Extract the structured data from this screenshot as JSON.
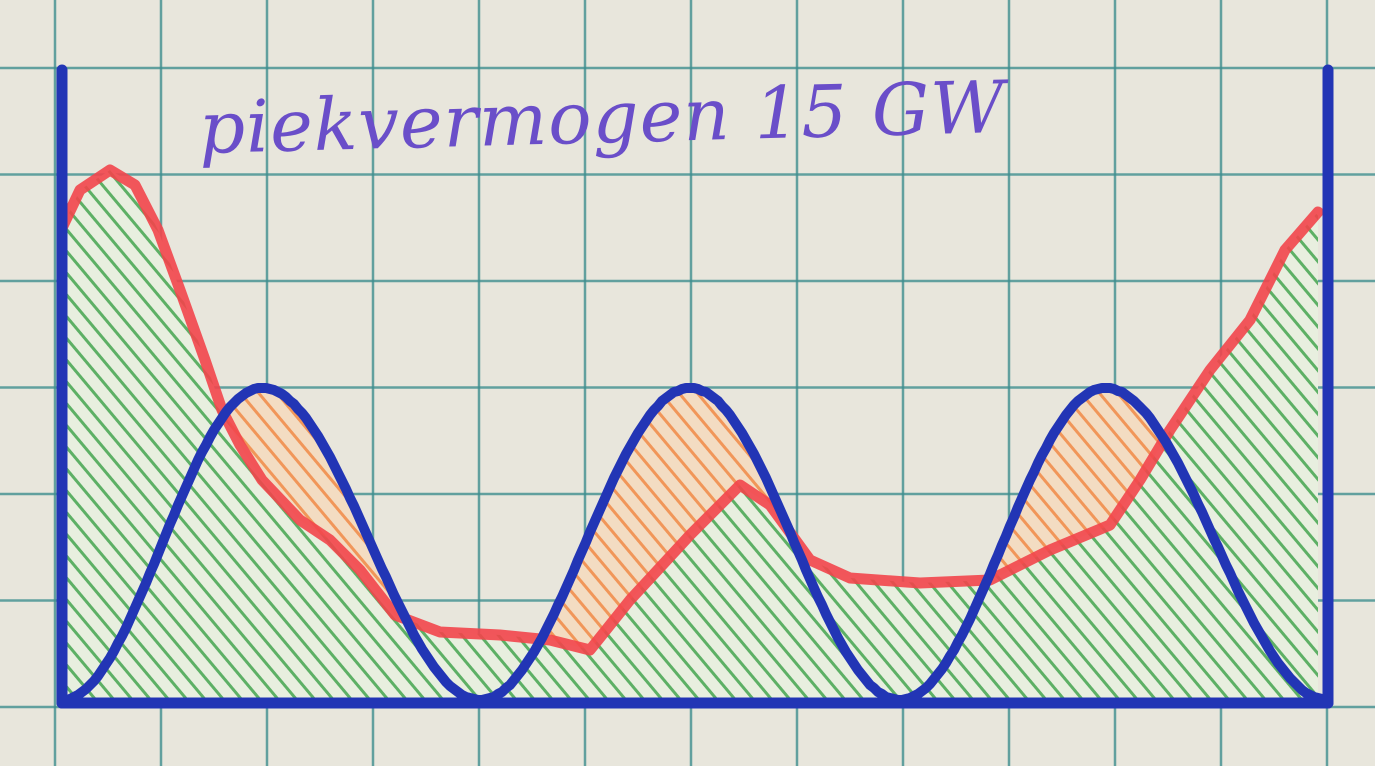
{
  "annotation": {
    "text": "piekvermogen 15 GW"
  },
  "colors": {
    "paper": "#e8e6dc",
    "grid": "#3f8f8f",
    "axis_and_supply_curve": "#2235b5",
    "demand_curve": "#f2454b",
    "surplus_hatch": "#2e9a3c",
    "deficit_hatch": "#f0843e",
    "handwriting": "#6a4ec9"
  },
  "hatching": {
    "green": "surplus",
    "orange": "deficit"
  }
}
